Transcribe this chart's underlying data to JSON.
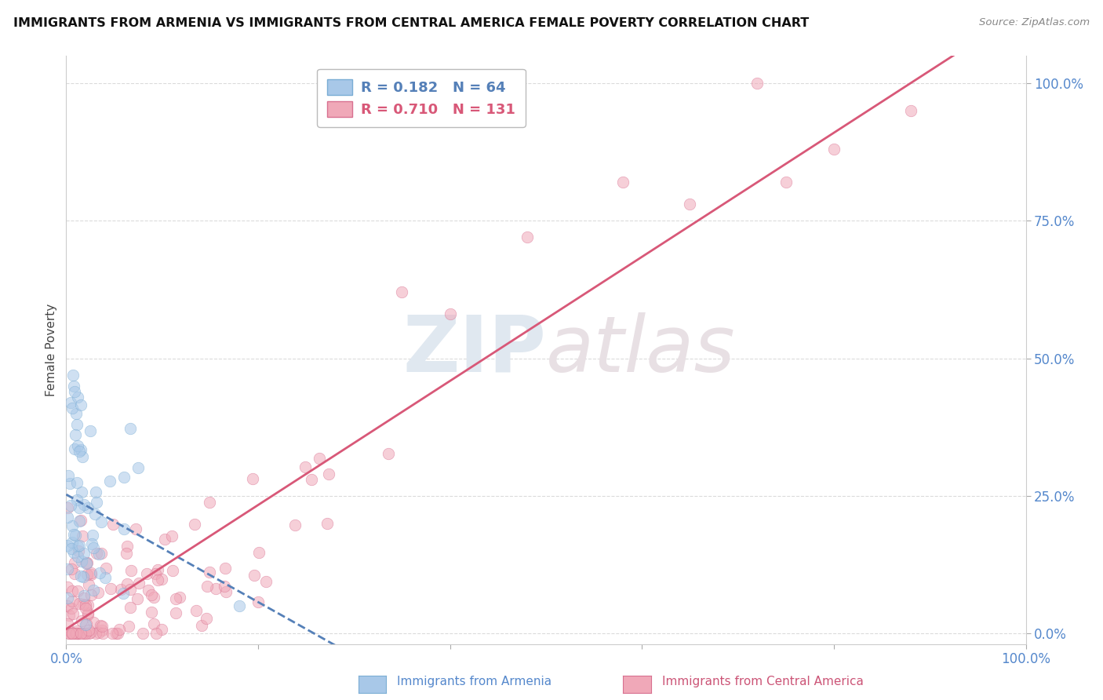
{
  "title": "IMMIGRANTS FROM ARMENIA VS IMMIGRANTS FROM CENTRAL AMERICA FEMALE POVERTY CORRELATION CHART",
  "source": "Source: ZipAtlas.com",
  "ylabel": "Female Poverty",
  "xlim": [
    0.0,
    1.0
  ],
  "ylim": [
    -0.02,
    1.05
  ],
  "ytick_labels": [
    "0.0%",
    "25.0%",
    "50.0%",
    "75.0%",
    "100.0%"
  ],
  "ytick_positions": [
    0.0,
    0.25,
    0.5,
    0.75,
    1.0
  ],
  "xtick_labels": [
    "0.0%",
    "100.0%"
  ],
  "xtick_positions": [
    0.0,
    1.0
  ],
  "grid_color": "#cccccc",
  "background_color": "#ffffff",
  "armenia_color": "#a8c8e8",
  "armenia_edge_color": "#7aadd4",
  "armenia_R": "0.182",
  "armenia_N": "64",
  "armenia_line_color": "#5580b8",
  "central_america_color": "#f0a8b8",
  "central_america_edge_color": "#d87090",
  "central_america_R": "0.710",
  "central_america_N": "131",
  "central_america_line_color": "#d85878",
  "marker_size": 110,
  "marker_alpha": 0.55,
  "marker_lw": 0.5
}
